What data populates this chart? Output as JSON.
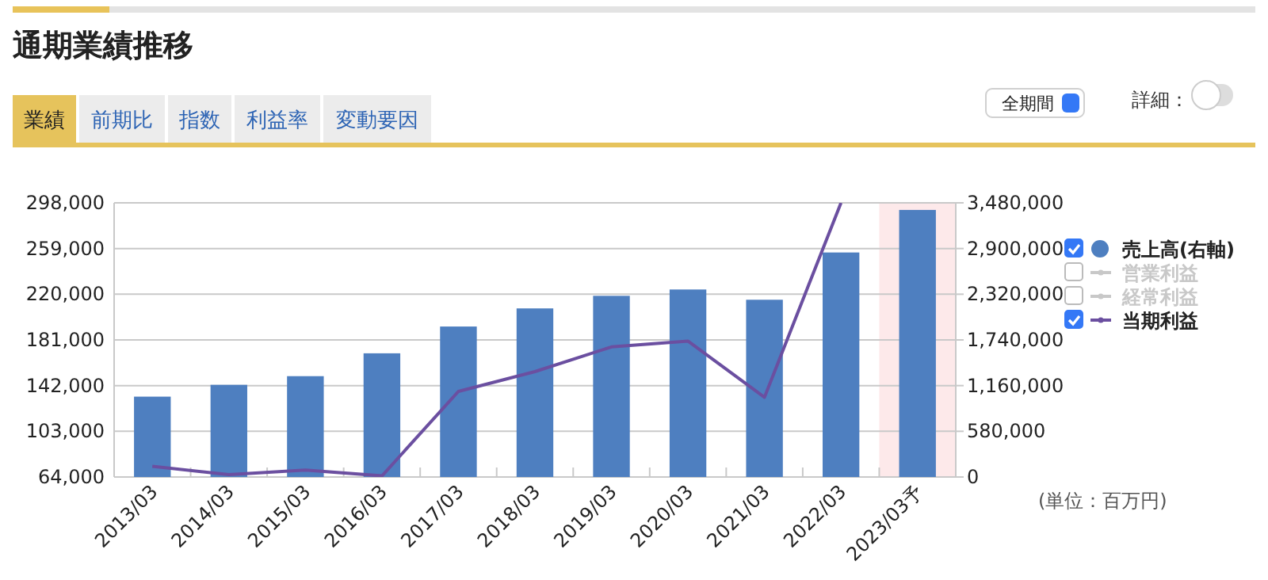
{
  "chart_data": {
    "type": "bar",
    "title": "通期業績推移",
    "categories": [
      "2013/03",
      "2014/03",
      "2015/03",
      "2016/03",
      "2017/03",
      "2018/03",
      "2019/03",
      "2020/03",
      "2021/03",
      "2022/03",
      "2023/03予"
    ],
    "series": [
      {
        "name": "売上高(右軸)",
        "axis": "y2",
        "color": "#4e7fc0",
        "values": [
          1020000,
          1170000,
          1280000,
          1570000,
          1910000,
          2140000,
          2300000,
          2380000,
          2250000,
          2850000,
          3390000
        ]
      },
      {
        "name": "営業利益",
        "type": "line",
        "color": "#c8c8c8",
        "values": [
          null,
          null,
          null,
          null,
          null,
          null,
          null,
          null,
          null,
          null,
          null
        ]
      },
      {
        "name": "経常利益",
        "type": "line",
        "color": "#c8c8c8",
        "values": [
          null,
          null,
          null,
          null,
          null,
          null,
          null,
          null,
          null,
          null,
          null
        ]
      },
      {
        "name": "当期利益",
        "type": "line",
        "color": "#6b4fa0",
        "values": [
          73000,
          66000,
          70000,
          65000,
          137000,
          154000,
          175000,
          180000,
          132000,
          298000,
          null
        ]
      }
    ],
    "ylim": [
      64000,
      298000
    ],
    "yticks": [
      {
        "value": 64000,
        "label": "64,000"
      },
      {
        "value": 103000,
        "label": "103,000"
      },
      {
        "value": 142000,
        "label": "142,000"
      },
      {
        "value": 181000,
        "label": "181,000"
      },
      {
        "value": 220000,
        "label": "220,000"
      },
      {
        "value": 259000,
        "label": "259,000"
      },
      {
        "value": 298000,
        "label": "298,000"
      }
    ],
    "y2lim": [
      0,
      3480000
    ],
    "y2ticks": [
      0,
      {
        "value": 580000,
        "label": "580,000"
      },
      {
        "value": 1160000,
        "label": "1,160,000"
      },
      {
        "value": 1740000,
        "label": "1,740,000"
      },
      {
        "value": 2320000,
        "label": "2,320,000"
      },
      {
        "value": 2900000,
        "label": "2,900,000"
      },
      {
        "value": 3480000,
        "label": "3,480,000"
      }
    ],
    "bands": [
      {
        "axis": "x",
        "from": "2023/03予",
        "to": "2023/03予",
        "color": "#fde9ea"
      }
    ],
    "grid": "y",
    "legend": "right",
    "annotations": [
      "業績",
      "前期比",
      "指数",
      "利益率",
      "変動要因",
      "全期間",
      "詳細：",
      "(単位：百万円)"
    ]
  }
}
